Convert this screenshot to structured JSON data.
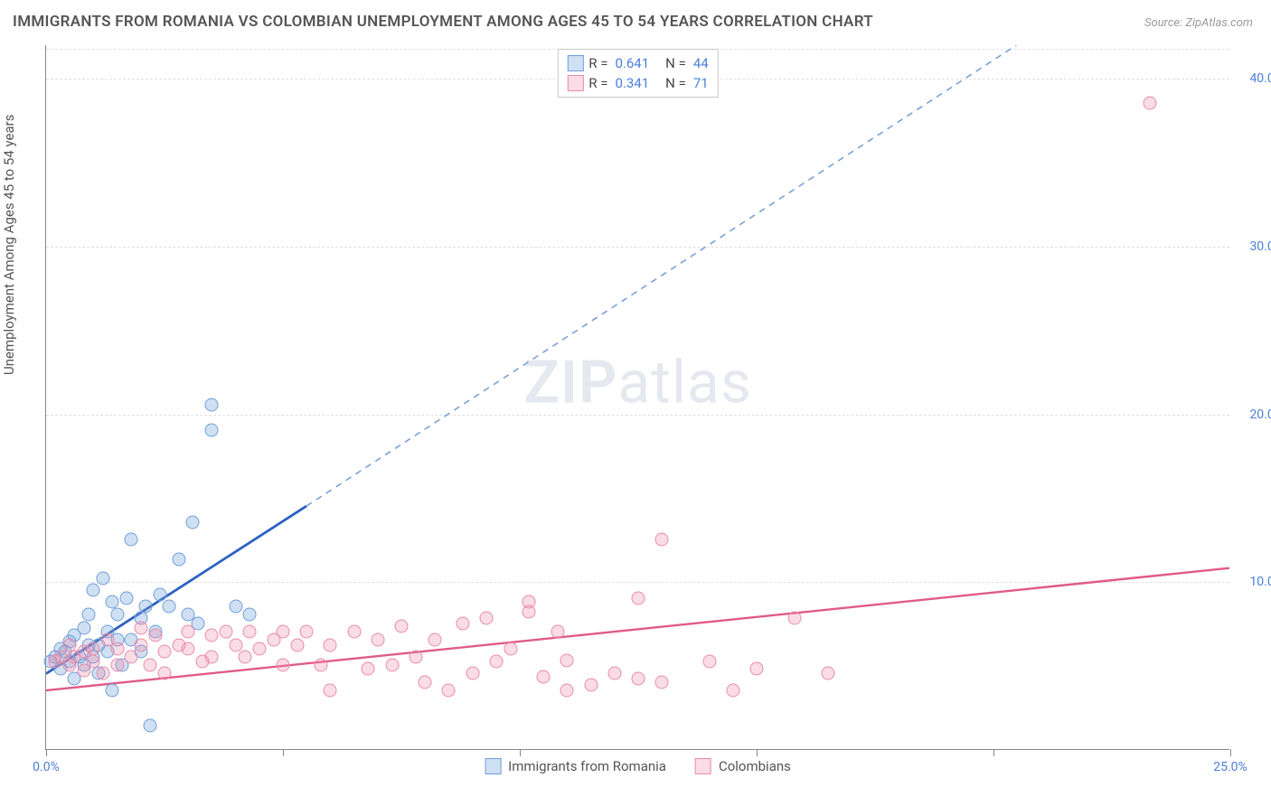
{
  "title": "IMMIGRANTS FROM ROMANIA VS COLOMBIAN UNEMPLOYMENT AMONG AGES 45 TO 54 YEARS CORRELATION CHART",
  "source": "Source: ZipAtlas.com",
  "y_axis_label": "Unemployment Among Ages 45 to 54 years",
  "watermark": {
    "bold": "ZIP",
    "light": "atlas"
  },
  "chart": {
    "type": "scatter",
    "xlim": [
      0,
      25
    ],
    "ylim": [
      0,
      42
    ],
    "x_ticks": [
      0,
      5,
      10,
      15,
      20,
      25
    ],
    "x_tick_labels": {
      "0": "0.0%",
      "25": "25.0%"
    },
    "y_ticks": [
      10,
      20,
      30,
      40
    ],
    "y_tick_labels": {
      "10": "10.0%",
      "20": "20.0%",
      "30": "30.0%",
      "40": "40.0%"
    },
    "grid_color": "#e0e0e0",
    "axis_color": "#888888",
    "background_color": "#ffffff",
    "tick_label_color": "#4a7fd8",
    "tick_label_fontsize": 14,
    "title_fontsize": 17,
    "title_color": "#555555"
  },
  "series": [
    {
      "name": "Immigrants from Romania",
      "R": "0.641",
      "N": "44",
      "fill_color": "rgba(120,165,220,0.35)",
      "stroke_color": "#6f9ed9",
      "line_color": "#2d62c2",
      "line_dash_color": "#7aa0d8",
      "marker_radius": 7.5,
      "trend_solid": {
        "x1": 0,
        "y1": 4.5,
        "x2": 5.5,
        "y2": 14.5
      },
      "trend_dash": {
        "x1": 5.5,
        "y1": 14.5,
        "x2": 20.5,
        "y2": 42
      },
      "points": [
        [
          0.1,
          5.2
        ],
        [
          0.2,
          5.5
        ],
        [
          0.3,
          4.8
        ],
        [
          0.3,
          6.0
        ],
        [
          0.4,
          5.8
        ],
        [
          0.5,
          5.2
        ],
        [
          0.5,
          6.4
        ],
        [
          0.6,
          6.8
        ],
        [
          0.6,
          4.2
        ],
        [
          0.7,
          5.5
        ],
        [
          0.8,
          7.2
        ],
        [
          0.8,
          5.0
        ],
        [
          0.9,
          6.2
        ],
        [
          0.9,
          8.0
        ],
        [
          1.0,
          5.5
        ],
        [
          1.0,
          9.5
        ],
        [
          1.1,
          6.2
        ],
        [
          1.1,
          4.5
        ],
        [
          1.2,
          10.2
        ],
        [
          1.3,
          7.0
        ],
        [
          1.3,
          5.8
        ],
        [
          1.4,
          8.8
        ],
        [
          1.4,
          3.5
        ],
        [
          1.5,
          8.0
        ],
        [
          1.5,
          6.5
        ],
        [
          1.6,
          5.0
        ],
        [
          1.7,
          9.0
        ],
        [
          1.8,
          12.5
        ],
        [
          1.8,
          6.5
        ],
        [
          2.0,
          7.8
        ],
        [
          2.0,
          5.8
        ],
        [
          2.1,
          8.5
        ],
        [
          2.3,
          7.0
        ],
        [
          2.4,
          9.2
        ],
        [
          2.6,
          8.5
        ],
        [
          2.8,
          11.3
        ],
        [
          3.0,
          8.0
        ],
        [
          3.1,
          13.5
        ],
        [
          3.2,
          7.5
        ],
        [
          3.5,
          19.0
        ],
        [
          3.5,
          20.5
        ],
        [
          4.0,
          8.5
        ],
        [
          4.3,
          8.0
        ],
        [
          2.2,
          1.4
        ]
      ]
    },
    {
      "name": "Colombians",
      "R": "0.341",
      "N": "71",
      "fill_color": "rgba(240,140,170,0.30)",
      "stroke_color": "#e98bab",
      "line_color": "#e05a8a",
      "marker_radius": 7.5,
      "trend_solid": {
        "x1": 0,
        "y1": 3.5,
        "x2": 25,
        "y2": 10.8
      },
      "points": [
        [
          0.2,
          5.2
        ],
        [
          0.3,
          5.5
        ],
        [
          0.5,
          5.0
        ],
        [
          0.5,
          6.2
        ],
        [
          0.6,
          5.5
        ],
        [
          0.8,
          5.8
        ],
        [
          0.8,
          4.7
        ],
        [
          1.0,
          6.0
        ],
        [
          1.0,
          5.2
        ],
        [
          1.2,
          4.5
        ],
        [
          1.3,
          6.5
        ],
        [
          1.5,
          5.0
        ],
        [
          1.5,
          6.0
        ],
        [
          1.8,
          5.5
        ],
        [
          2.0,
          6.2
        ],
        [
          2.0,
          7.2
        ],
        [
          2.2,
          5.0
        ],
        [
          2.3,
          6.8
        ],
        [
          2.5,
          5.8
        ],
        [
          2.5,
          4.5
        ],
        [
          2.8,
          6.2
        ],
        [
          3.0,
          7.0
        ],
        [
          3.0,
          6.0
        ],
        [
          3.3,
          5.2
        ],
        [
          3.5,
          6.8
        ],
        [
          3.5,
          5.5
        ],
        [
          3.8,
          7.0
        ],
        [
          4.0,
          6.2
        ],
        [
          4.2,
          5.5
        ],
        [
          4.3,
          7.0
        ],
        [
          4.5,
          6.0
        ],
        [
          4.8,
          6.5
        ],
        [
          5.0,
          5.0
        ],
        [
          5.0,
          7.0
        ],
        [
          5.3,
          6.2
        ],
        [
          5.5,
          7.0
        ],
        [
          5.8,
          5.0
        ],
        [
          6.0,
          6.2
        ],
        [
          6.0,
          3.5
        ],
        [
          6.5,
          7.0
        ],
        [
          6.8,
          4.8
        ],
        [
          7.0,
          6.5
        ],
        [
          7.3,
          5.0
        ],
        [
          7.5,
          7.3
        ],
        [
          7.8,
          5.5
        ],
        [
          8.0,
          4.0
        ],
        [
          8.2,
          6.5
        ],
        [
          8.5,
          3.5
        ],
        [
          8.8,
          7.5
        ],
        [
          9.0,
          4.5
        ],
        [
          9.3,
          7.8
        ],
        [
          9.5,
          5.2
        ],
        [
          9.8,
          6.0
        ],
        [
          10.2,
          8.2
        ],
        [
          10.2,
          8.8
        ],
        [
          10.5,
          4.3
        ],
        [
          10.8,
          7.0
        ],
        [
          11.0,
          3.5
        ],
        [
          11.0,
          5.3
        ],
        [
          11.5,
          3.8
        ],
        [
          12.0,
          4.5
        ],
        [
          12.5,
          9.0
        ],
        [
          12.5,
          4.2
        ],
        [
          13.0,
          12.5
        ],
        [
          13.0,
          4.0
        ],
        [
          14.0,
          5.2
        ],
        [
          14.5,
          3.5
        ],
        [
          15.0,
          4.8
        ],
        [
          15.8,
          7.8
        ],
        [
          16.5,
          4.5
        ],
        [
          23.3,
          38.5
        ]
      ]
    }
  ],
  "legend": {
    "r_label": "R =",
    "n_label": "N ="
  }
}
